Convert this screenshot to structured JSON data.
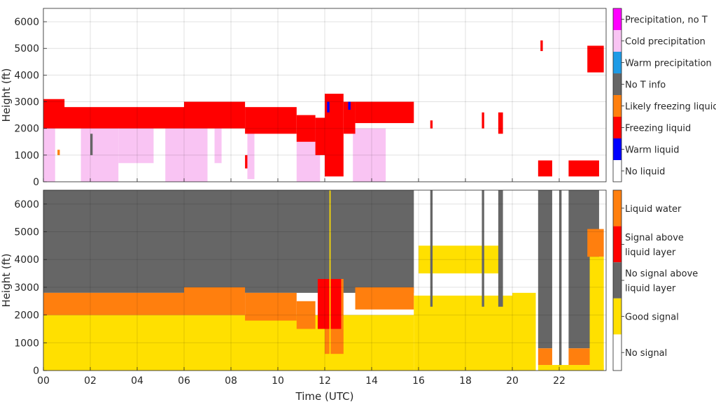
{
  "chart_data": [
    {
      "type": "heatmap",
      "panel": "top",
      "ylabel": "Height (ft)",
      "xlabel": "",
      "xlim": [
        0,
        24
      ],
      "ylim": [
        0,
        6500
      ],
      "yticks": [
        0,
        1000,
        2000,
        3000,
        4000,
        5000,
        6000
      ],
      "xticks": [
        0,
        2,
        4,
        6,
        8,
        10,
        12,
        14,
        16,
        18,
        20,
        22
      ],
      "grid": true,
      "legend": {
        "placement": "right",
        "classes": [
          {
            "label": "Precipitation, no T",
            "color": "#ff00ff"
          },
          {
            "label": "Cold precipitation",
            "color": "#f9c4f3"
          },
          {
            "label": "Warm precipitation",
            "color": "#1e9be6"
          },
          {
            "label": "No T info",
            "color": "#666666"
          },
          {
            "label": "Likely freezing liquid",
            "color": "#ff7f0e"
          },
          {
            "label": "Freezing liquid",
            "color": "#ff0000"
          },
          {
            "label": "Warm liquid",
            "color": "#0000ff"
          },
          {
            "label": "No liquid",
            "color": "#ffffff"
          }
        ]
      },
      "regions": [
        {
          "class": "Cold precipitation",
          "x": [
            0.0,
            0.5
          ],
          "y": [
            0,
            2000
          ]
        },
        {
          "class": "Cold precipitation",
          "x": [
            1.6,
            3.2
          ],
          "y": [
            0,
            2000
          ]
        },
        {
          "class": "Cold precipitation",
          "x": [
            3.2,
            4.7
          ],
          "y": [
            700,
            2000
          ]
        },
        {
          "class": "Cold precipitation",
          "x": [
            5.2,
            7.0
          ],
          "y": [
            0,
            2000
          ]
        },
        {
          "class": "Cold precipitation",
          "x": [
            7.3,
            7.6
          ],
          "y": [
            700,
            2000
          ]
        },
        {
          "class": "Cold precipitation",
          "x": [
            8.7,
            9.0
          ],
          "y": [
            100,
            2000
          ]
        },
        {
          "class": "Cold precipitation",
          "x": [
            10.8,
            11.8
          ],
          "y": [
            0,
            2000
          ]
        },
        {
          "class": "Cold precipitation",
          "x": [
            13.2,
            14.6
          ],
          "y": [
            0,
            2000
          ]
        },
        {
          "class": "Freezing liquid",
          "x": [
            0.0,
            3.0
          ],
          "y": [
            2000,
            2800
          ]
        },
        {
          "class": "Freezing liquid",
          "x": [
            3.0,
            6.0
          ],
          "y": [
            2000,
            2800
          ]
        },
        {
          "class": "Freezing liquid",
          "x": [
            6.0,
            8.6
          ],
          "y": [
            2000,
            3000
          ]
        },
        {
          "class": "Freezing liquid",
          "x": [
            8.6,
            10.8
          ],
          "y": [
            1800,
            2800
          ]
        },
        {
          "class": "Freezing liquid",
          "x": [
            10.8,
            11.6
          ],
          "y": [
            1500,
            2500
          ]
        },
        {
          "class": "Freezing liquid",
          "x": [
            11.6,
            12.0
          ],
          "y": [
            1000,
            2400
          ]
        },
        {
          "class": "Freezing liquid",
          "x": [
            12.0,
            12.8
          ],
          "y": [
            200,
            3300
          ]
        },
        {
          "class": "Freezing liquid",
          "x": [
            12.8,
            13.3
          ],
          "y": [
            1800,
            3000
          ]
        },
        {
          "class": "Freezing liquid",
          "x": [
            13.3,
            15.8
          ],
          "y": [
            2200,
            3000
          ]
        },
        {
          "class": "Freezing liquid",
          "x": [
            0.0,
            0.9
          ],
          "y": [
            2600,
            3100
          ]
        },
        {
          "class": "Freezing liquid",
          "x": [
            16.5,
            16.6
          ],
          "y": [
            2000,
            2300
          ]
        },
        {
          "class": "Freezing liquid",
          "x": [
            18.7,
            18.8
          ],
          "y": [
            2000,
            2600
          ]
        },
        {
          "class": "Freezing liquid",
          "x": [
            19.4,
            19.6
          ],
          "y": [
            1800,
            2600
          ]
        },
        {
          "class": "Freezing liquid",
          "x": [
            21.1,
            21.7
          ],
          "y": [
            200,
            800
          ]
        },
        {
          "class": "Freezing liquid",
          "x": [
            22.4,
            23.7
          ],
          "y": [
            200,
            800
          ]
        },
        {
          "class": "Freezing liquid",
          "x": [
            21.2,
            21.3
          ],
          "y": [
            4900,
            5300
          ]
        },
        {
          "class": "Freezing liquid",
          "x": [
            23.2,
            23.9
          ],
          "y": [
            4100,
            5100
          ]
        },
        {
          "class": "Freezing liquid",
          "x": [
            8.6,
            8.7
          ],
          "y": [
            500,
            1000
          ]
        },
        {
          "class": "Warm liquid",
          "x": [
            12.1,
            12.2
          ],
          "y": [
            2600,
            3000
          ]
        },
        {
          "class": "Warm liquid",
          "x": [
            13.0,
            13.1
          ],
          "y": [
            2700,
            3000
          ]
        },
        {
          "class": "No T info",
          "x": [
            2.0,
            2.1
          ],
          "y": [
            1000,
            1800
          ]
        },
        {
          "class": "Likely freezing liquid",
          "x": [
            0.6,
            0.7
          ],
          "y": [
            1000,
            1200
          ]
        }
      ]
    },
    {
      "type": "heatmap",
      "panel": "bottom",
      "ylabel": "Height (ft)",
      "xlabel": "Time (UTC)",
      "xlim": [
        0,
        24
      ],
      "ylim": [
        0,
        6500
      ],
      "yticks": [
        0,
        1000,
        2000,
        3000,
        4000,
        5000,
        6000
      ],
      "xticks": [
        0,
        2,
        4,
        6,
        8,
        10,
        12,
        14,
        16,
        18,
        20,
        22
      ],
      "xticklabels": [
        "00",
        "02",
        "04",
        "06",
        "08",
        "10",
        "12",
        "14",
        "16",
        "18",
        "20",
        "22"
      ],
      "grid": true,
      "legend": {
        "placement": "right",
        "classes": [
          {
            "label": "Liquid water",
            "color": "#ff7f0e"
          },
          {
            "label": "Signal above liquid layer",
            "lines": [
              "Signal above",
              "liquid layer"
            ],
            "color": "#ff0000"
          },
          {
            "label": "No signal above liquid layer",
            "lines": [
              "No signal above",
              "liquid layer"
            ],
            "color": "#666666"
          },
          {
            "label": "Good signal",
            "color": "#ffe000"
          },
          {
            "label": "No signal",
            "color": "#ffffff"
          }
        ]
      },
      "regions": [
        {
          "class": "No signal above liquid layer",
          "x": [
            0.0,
            15.8
          ],
          "y": [
            2800,
            6500
          ]
        },
        {
          "class": "Good signal",
          "x": [
            0.0,
            15.8
          ],
          "y": [
            0,
            2000
          ]
        },
        {
          "class": "Liquid water",
          "x": [
            0.0,
            3.0
          ],
          "y": [
            2000,
            2800
          ]
        },
        {
          "class": "Liquid water",
          "x": [
            3.0,
            6.0
          ],
          "y": [
            2000,
            2800
          ]
        },
        {
          "class": "Liquid water",
          "x": [
            6.0,
            8.6
          ],
          "y": [
            2000,
            3000
          ]
        },
        {
          "class": "Liquid water",
          "x": [
            8.6,
            10.8
          ],
          "y": [
            1800,
            2800
          ]
        },
        {
          "class": "Liquid water",
          "x": [
            10.8,
            11.6
          ],
          "y": [
            1500,
            2500
          ]
        },
        {
          "class": "Liquid water",
          "x": [
            12.0,
            12.8
          ],
          "y": [
            600,
            3300
          ]
        },
        {
          "class": "Liquid water",
          "x": [
            13.3,
            15.8
          ],
          "y": [
            2200,
            3000
          ]
        },
        {
          "class": "Signal above liquid layer",
          "x": [
            11.7,
            12.7
          ],
          "y": [
            1500,
            3300
          ]
        },
        {
          "class": "Good signal",
          "x": [
            15.8,
            20.0
          ],
          "y": [
            0,
            2700
          ]
        },
        {
          "class": "Good signal",
          "x": [
            16.0,
            19.5
          ],
          "y": [
            3500,
            4500
          ]
        },
        {
          "class": "Good signal",
          "x": [
            20.0,
            21.0
          ],
          "y": [
            0,
            2800
          ]
        },
        {
          "class": "No signal above liquid layer",
          "x": [
            16.5,
            16.6
          ],
          "y": [
            2300,
            6500
          ]
        },
        {
          "class": "No signal above liquid layer",
          "x": [
            18.7,
            18.8
          ],
          "y": [
            2300,
            6500
          ]
        },
        {
          "class": "No signal above liquid layer",
          "x": [
            19.4,
            19.6
          ],
          "y": [
            2300,
            6500
          ]
        },
        {
          "class": "No signal above liquid layer",
          "x": [
            21.1,
            21.7
          ],
          "y": [
            800,
            6500
          ]
        },
        {
          "class": "No signal above liquid layer",
          "x": [
            22.0,
            22.1
          ],
          "y": [
            0,
            6500
          ]
        },
        {
          "class": "No signal above liquid layer",
          "x": [
            22.4,
            23.7
          ],
          "y": [
            800,
            6500
          ]
        },
        {
          "class": "Good signal",
          "x": [
            21.1,
            23.9
          ],
          "y": [
            0,
            200
          ]
        },
        {
          "class": "Liquid water",
          "x": [
            21.1,
            21.7
          ],
          "y": [
            200,
            800
          ]
        },
        {
          "class": "Liquid water",
          "x": [
            22.4,
            23.7
          ],
          "y": [
            200,
            800
          ]
        },
        {
          "class": "Liquid water",
          "x": [
            23.2,
            23.9
          ],
          "y": [
            4100,
            5100
          ]
        },
        {
          "class": "Good signal",
          "x": [
            23.3,
            23.9
          ],
          "y": [
            0,
            4100
          ]
        },
        {
          "class": "Good signal",
          "x": [
            12.2,
            12.25
          ],
          "y": [
            0,
            6500
          ]
        }
      ]
    }
  ]
}
